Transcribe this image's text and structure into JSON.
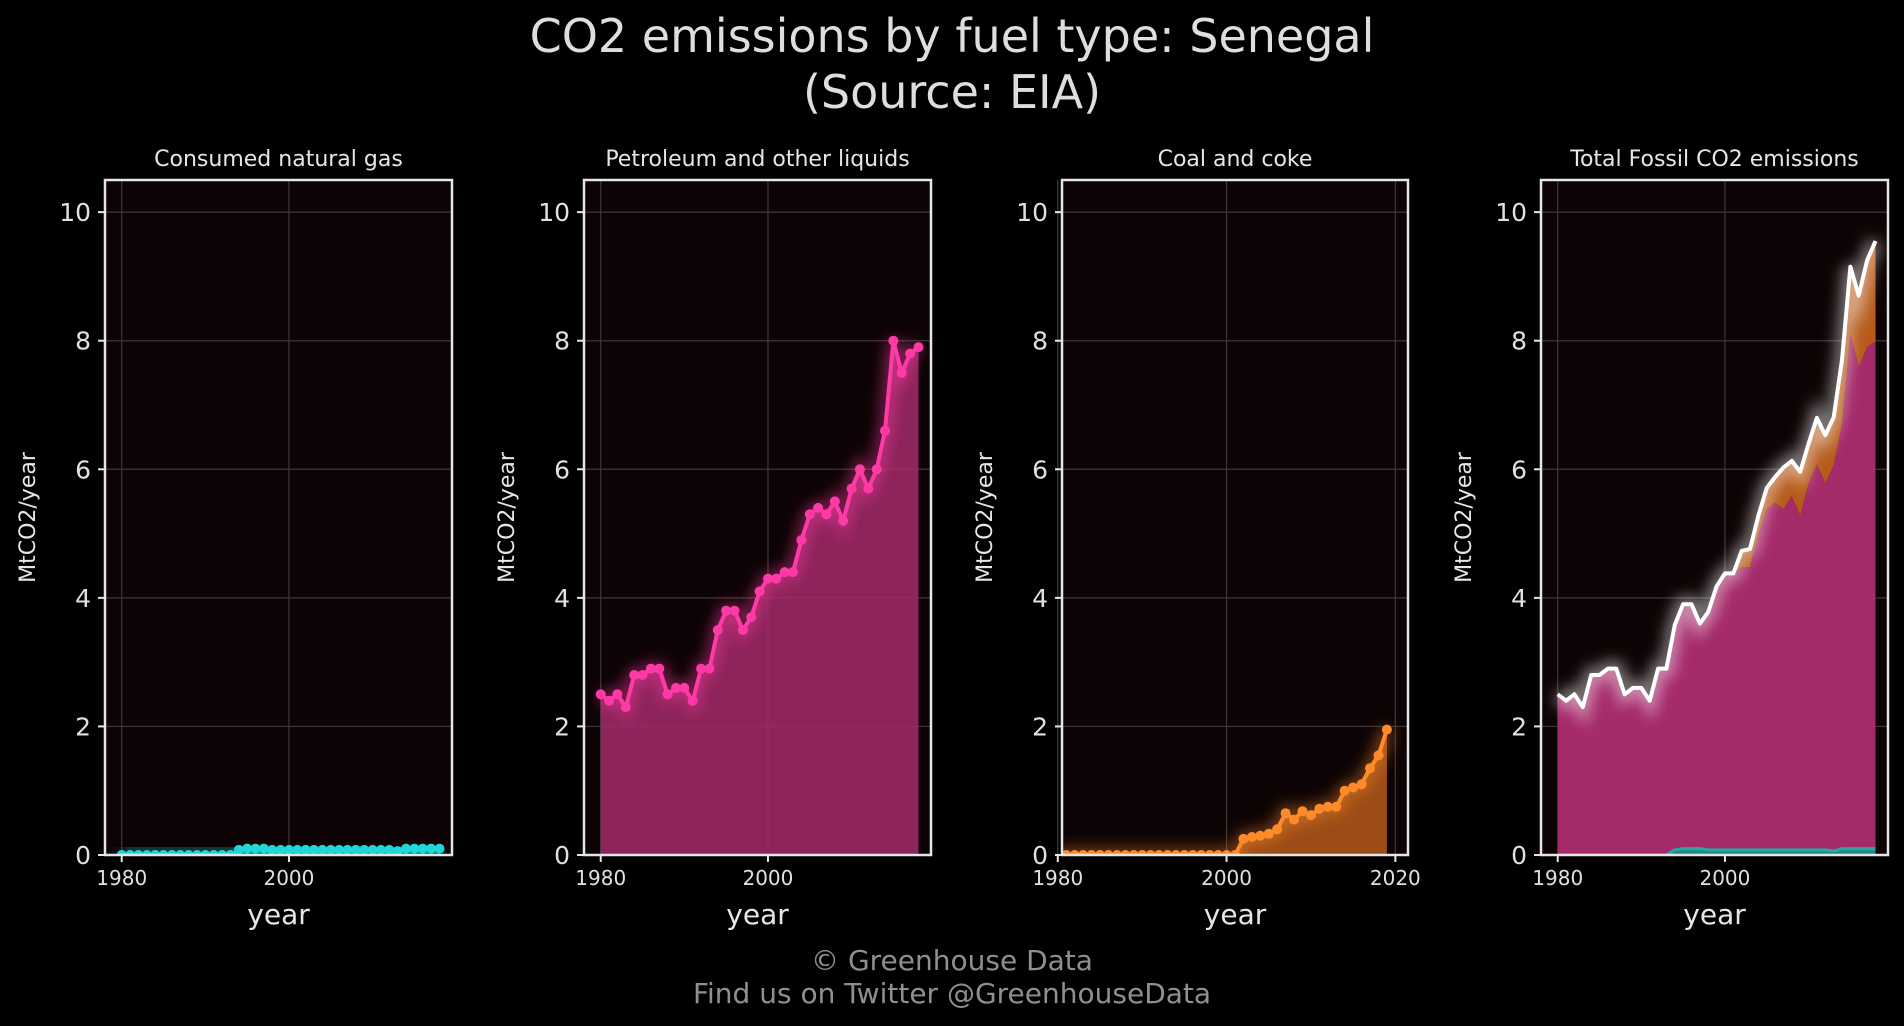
{
  "title_line1": "CO2 emissions by fuel type: Senegal",
  "title_line2": "(Source: EIA)",
  "footer_line1": "© Greenhouse Data",
  "footer_line2": "Find us on Twitter @GreenhouseData",
  "colors": {
    "background": "#000000",
    "plot_bg": "#0d0304",
    "frame": "#e6e6e6",
    "grid": "#3a3a3a",
    "gas": "#1fd7d7",
    "petroleum": "#ff3aa6",
    "petroleum_fill": "#a52a6a",
    "coal": "#ff8a2a",
    "coal_fill": "#b65a1a",
    "total": "#ffffff"
  },
  "chart_data": [
    {
      "type": "area",
      "title": "Consumed natural gas",
      "xlabel": "year",
      "ylabel": "MtCO2/year",
      "xlim": [
        1978,
        2019.5
      ],
      "ylim": [
        0,
        10.5
      ],
      "xticks": [
        1980,
        2000
      ],
      "yticks": [
        0,
        2,
        4,
        6,
        8,
        10
      ],
      "grid": true,
      "series": [
        {
          "key": "gas",
          "x": [
            1980,
            1981,
            1982,
            1983,
            1984,
            1985,
            1986,
            1987,
            1988,
            1989,
            1990,
            1991,
            1992,
            1993,
            1994,
            1995,
            1996,
            1997,
            1998,
            1999,
            2000,
            2001,
            2002,
            2003,
            2004,
            2005,
            2006,
            2007,
            2008,
            2009,
            2010,
            2011,
            2012,
            2013,
            2014,
            2015,
            2016,
            2017,
            2018
          ],
          "values": [
            0,
            0,
            0,
            0,
            0,
            0,
            0,
            0,
            0,
            0,
            0,
            0,
            0,
            0,
            0.08,
            0.1,
            0.1,
            0.1,
            0.08,
            0.08,
            0.08,
            0.08,
            0.08,
            0.08,
            0.08,
            0.08,
            0.08,
            0.08,
            0.08,
            0.08,
            0.08,
            0.08,
            0.08,
            0.06,
            0.1,
            0.1,
            0.1,
            0.1,
            0.1
          ]
        }
      ]
    },
    {
      "type": "area",
      "title": "Petroleum and other liquids",
      "xlabel": "year",
      "ylabel": "MtCO2/year",
      "xlim": [
        1978,
        2019.5
      ],
      "ylim": [
        0,
        10.5
      ],
      "xticks": [
        1980,
        2000
      ],
      "yticks": [
        0,
        2,
        4,
        6,
        8,
        10
      ],
      "grid": true,
      "series": [
        {
          "key": "petroleum",
          "x": [
            1980,
            1981,
            1982,
            1983,
            1984,
            1985,
            1986,
            1987,
            1988,
            1989,
            1990,
            1991,
            1992,
            1993,
            1994,
            1995,
            1996,
            1997,
            1998,
            1999,
            2000,
            2001,
            2002,
            2003,
            2004,
            2005,
            2006,
            2007,
            2008,
            2009,
            2010,
            2011,
            2012,
            2013,
            2014,
            2015,
            2016,
            2017,
            2018
          ],
          "values": [
            2.5,
            2.4,
            2.5,
            2.3,
            2.8,
            2.8,
            2.9,
            2.9,
            2.5,
            2.6,
            2.6,
            2.4,
            2.9,
            2.9,
            3.5,
            3.8,
            3.8,
            3.5,
            3.7,
            4.1,
            4.3,
            4.3,
            4.4,
            4.4,
            4.9,
            5.3,
            5.4,
            5.3,
            5.5,
            5.2,
            5.7,
            6.0,
            5.7,
            6.0,
            6.6,
            8.0,
            7.5,
            7.8,
            7.9
          ]
        }
      ]
    },
    {
      "type": "area",
      "title": "Coal and coke",
      "xlabel": "year",
      "ylabel": "MtCO2/year",
      "xlim": [
        1980.5,
        2021.5
      ],
      "ylim": [
        0,
        10.5
      ],
      "xticks": [
        1980,
        2000,
        2020
      ],
      "yticks": [
        0,
        2,
        4,
        6,
        8,
        10
      ],
      "grid": true,
      "series": [
        {
          "key": "coal",
          "x": [
            1980,
            1981,
            1982,
            1983,
            1984,
            1985,
            1986,
            1987,
            1988,
            1989,
            1990,
            1991,
            1992,
            1993,
            1994,
            1995,
            1996,
            1997,
            1998,
            1999,
            2000,
            2001,
            2002,
            2003,
            2004,
            2005,
            2006,
            2007,
            2008,
            2009,
            2010,
            2011,
            2012,
            2013,
            2014,
            2015,
            2016,
            2017,
            2018,
            2019
          ],
          "values": [
            0,
            0,
            0,
            0,
            0,
            0,
            0,
            0,
            0,
            0,
            0,
            0,
            0,
            0,
            0,
            0,
            0,
            0,
            0,
            0,
            0,
            0,
            0.25,
            0.28,
            0.3,
            0.33,
            0.4,
            0.65,
            0.55,
            0.68,
            0.62,
            0.72,
            0.75,
            0.75,
            1.0,
            1.05,
            1.1,
            1.35,
            1.55,
            1.95
          ]
        }
      ]
    },
    {
      "type": "area",
      "title": "Total Fossil CO2 emissions",
      "xlabel": "year",
      "ylabel": "MtCO2/year",
      "xlim": [
        1978,
        2019.5
      ],
      "ylim": [
        0,
        10.5
      ],
      "xticks": [
        1980,
        2000
      ],
      "yticks": [
        0,
        2,
        4,
        6,
        8,
        10
      ],
      "grid": true,
      "stacked": [
        "gas",
        "petroleum",
        "coal"
      ],
      "total_line": true
    }
  ]
}
